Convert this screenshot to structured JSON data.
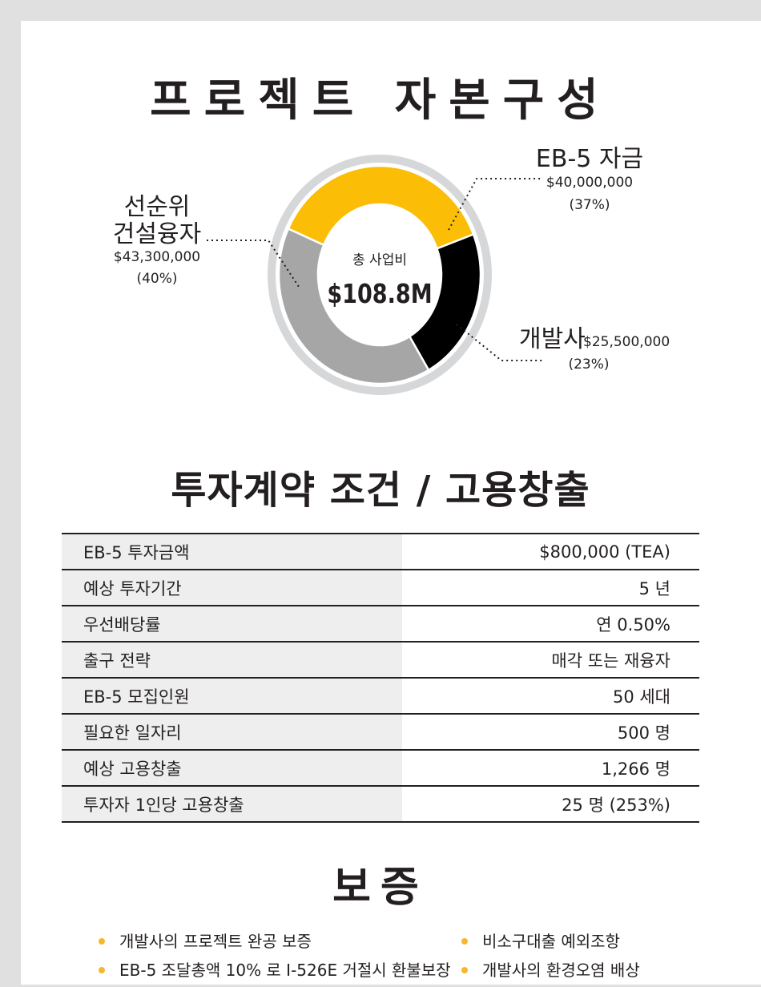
{
  "section1": {
    "title": "프로젝트 자본구성"
  },
  "chart_data": {
    "type": "pie",
    "center_label": "총 사업비",
    "center_value": "$108.8M",
    "slices": [
      {
        "name": "EB-5 자금",
        "amount": "$40,000,000",
        "percent_label": "(37%)",
        "value": 37,
        "color": "#fbbd06"
      },
      {
        "name": "개발사",
        "amount": "$25,500,000",
        "percent_label": "(23%)",
        "value": 23,
        "color": "#000000"
      },
      {
        "name_lines": [
          "선순위",
          "건설융자"
        ],
        "amount": "$43,300,000",
        "percent_label": "(40%)",
        "value": 40,
        "color": "#a6a6a6"
      }
    ]
  },
  "section2": {
    "title": "투자계약 조건 / 고용창출",
    "rows": [
      {
        "label": "EB-5 투자금액",
        "value": "$800,000 (TEA)"
      },
      {
        "label": "예상 투자기간",
        "value": "5 년"
      },
      {
        "label": "우선배당률",
        "value": "연 0.50%"
      },
      {
        "label": "출구 전략",
        "value": "매각 또는 재융자"
      },
      {
        "label": "EB-5 모집인원",
        "value": "50 세대"
      },
      {
        "label": "필요한 일자리",
        "value": "500 명"
      },
      {
        "label": "예상 고용창출",
        "value": "1,266 명"
      },
      {
        "label": "투자자 1인당 고용창출",
        "value": "25 명 (253%)"
      }
    ]
  },
  "section3": {
    "title": "보증",
    "left_items": [
      "개발사의 프로젝트 완공 보증",
      "EB-5 조달총액 10% 로 I-526E 거절시 환불보장"
    ],
    "right_items": [
      "비소구대출 예외조항",
      "개발사의 환경오염 배상"
    ],
    "bullet_color": "#f4b82a"
  }
}
